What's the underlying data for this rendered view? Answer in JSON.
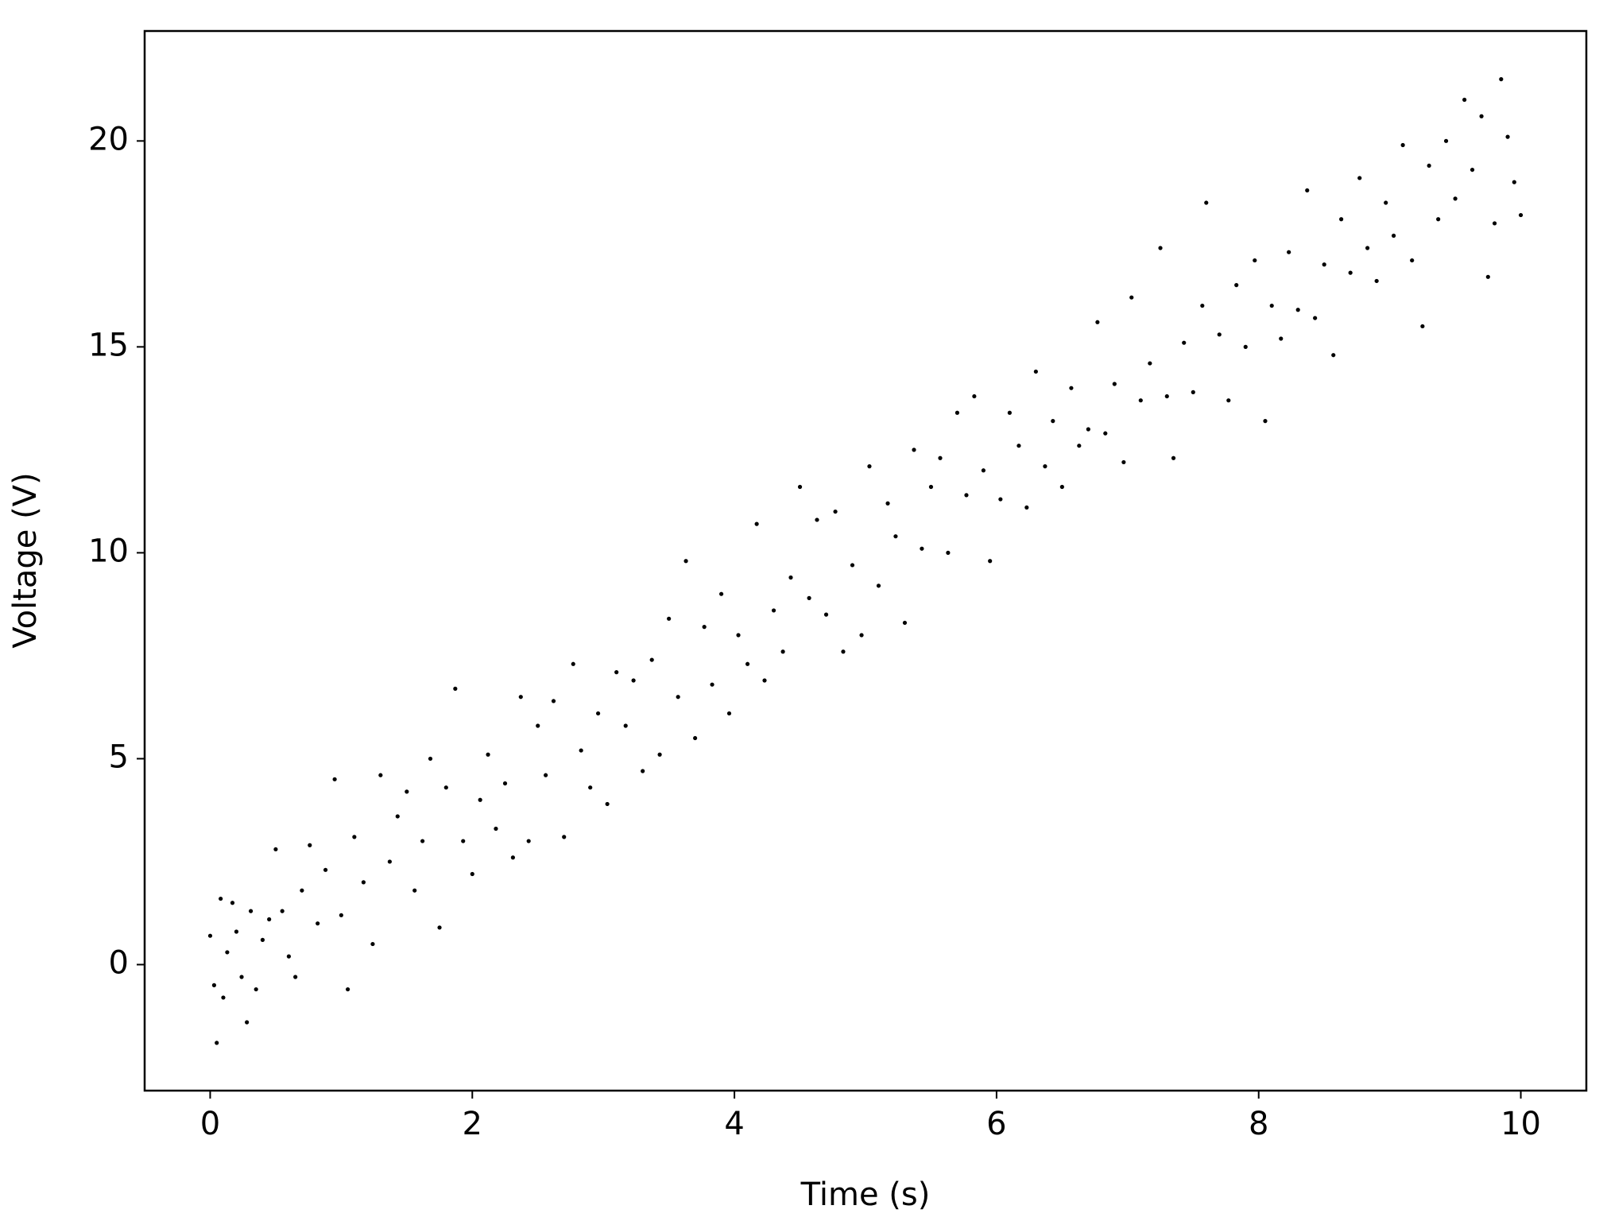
{
  "chart_data": {
    "type": "scatter",
    "xlabel": "Time (s)",
    "ylabel": "Voltage (V)",
    "xlim": [
      -0.5,
      10.5
    ],
    "ylim": [
      -3.06,
      22.67
    ],
    "xticks": [
      0,
      2,
      4,
      6,
      8,
      10
    ],
    "yticks": [
      0,
      5,
      10,
      15,
      20
    ],
    "color": "#000000",
    "x": [
      0.0,
      0.03,
      0.05,
      0.08,
      0.1,
      0.13,
      0.17,
      0.2,
      0.24,
      0.28,
      0.31,
      0.35,
      0.4,
      0.45,
      0.5,
      0.55,
      0.6,
      0.65,
      0.7,
      0.76,
      0.82,
      0.88,
      0.95,
      1.0,
      1.05,
      1.1,
      1.17,
      1.24,
      1.3,
      1.37,
      1.43,
      1.5,
      1.56,
      1.62,
      1.68,
      1.75,
      1.8,
      1.87,
      1.93,
      2.0,
      2.06,
      2.12,
      2.18,
      2.25,
      2.31,
      2.37,
      2.43,
      2.5,
      2.56,
      2.62,
      2.7,
      2.77,
      2.83,
      2.9,
      2.96,
      3.03,
      3.1,
      3.17,
      3.23,
      3.3,
      3.37,
      3.43,
      3.5,
      3.57,
      3.63,
      3.7,
      3.77,
      3.83,
      3.9,
      3.96,
      4.03,
      4.1,
      4.17,
      4.23,
      4.3,
      4.37,
      4.43,
      4.5,
      4.57,
      4.63,
      4.7,
      4.77,
      4.83,
      4.9,
      4.97,
      5.03,
      5.1,
      5.17,
      5.23,
      5.3,
      5.37,
      5.43,
      5.5,
      5.57,
      5.63,
      5.7,
      5.77,
      5.83,
      5.9,
      5.95,
      6.03,
      6.1,
      6.17,
      6.23,
      6.3,
      6.37,
      6.43,
      6.5,
      6.57,
      6.63,
      6.7,
      6.77,
      6.83,
      6.9,
      6.97,
      7.03,
      7.1,
      7.17,
      7.25,
      7.3,
      7.35,
      7.43,
      7.5,
      7.57,
      7.6,
      7.7,
      7.77,
      7.83,
      7.9,
      7.97,
      8.05,
      8.1,
      8.17,
      8.23,
      8.3,
      8.37,
      8.43,
      8.5,
      8.57,
      8.63,
      8.7,
      8.77,
      8.83,
      8.9,
      8.97,
      9.03,
      9.1,
      9.17,
      9.25,
      9.3,
      9.37,
      9.43,
      9.5,
      9.57,
      9.63,
      9.7,
      9.75,
      9.8,
      9.85,
      9.9,
      9.95,
      10.0
    ],
    "values": [
      0.7,
      -0.5,
      -1.9,
      1.6,
      -0.8,
      0.3,
      1.5,
      0.8,
      -0.3,
      -1.4,
      1.3,
      -0.6,
      0.6,
      1.1,
      2.8,
      1.3,
      0.2,
      -0.3,
      1.8,
      2.9,
      1.0,
      2.3,
      4.5,
      1.2,
      -0.6,
      3.1,
      2.0,
      0.5,
      4.6,
      2.5,
      3.6,
      4.2,
      1.8,
      3.0,
      5.0,
      0.9,
      4.3,
      6.7,
      3.0,
      2.2,
      4.0,
      5.1,
      3.3,
      4.4,
      2.6,
      6.5,
      3.0,
      5.8,
      4.6,
      6.4,
      3.1,
      7.3,
      5.2,
      4.3,
      6.1,
      3.9,
      7.1,
      5.8,
      6.9,
      4.7,
      7.4,
      5.1,
      8.4,
      6.5,
      9.8,
      5.5,
      8.2,
      6.8,
      9.0,
      6.1,
      8.0,
      7.3,
      10.7,
      6.9,
      8.6,
      7.6,
      9.4,
      11.6,
      8.9,
      10.8,
      8.5,
      11.0,
      7.6,
      9.7,
      8.0,
      12.1,
      9.2,
      11.2,
      10.4,
      8.3,
      12.5,
      10.1,
      11.6,
      12.3,
      10.0,
      13.4,
      11.4,
      13.8,
      12.0,
      9.8,
      11.3,
      13.4,
      12.6,
      11.1,
      14.4,
      12.1,
      13.2,
      11.6,
      14.0,
      12.6,
      13.0,
      15.6,
      12.9,
      14.1,
      12.2,
      16.2,
      13.7,
      14.6,
      17.4,
      13.8,
      12.3,
      15.1,
      13.9,
      16.0,
      18.5,
      15.3,
      13.7,
      16.5,
      15.0,
      17.1,
      13.2,
      16.0,
      15.2,
      17.3,
      15.9,
      18.8,
      15.7,
      17.0,
      14.8,
      18.1,
      16.8,
      19.1,
      17.4,
      16.6,
      18.5,
      17.7,
      19.9,
      17.1,
      15.5,
      19.4,
      18.1,
      20.0,
      18.6,
      21.0,
      19.3,
      20.6,
      16.7,
      18.0,
      21.5,
      20.1,
      19.0,
      18.2
    ]
  }
}
